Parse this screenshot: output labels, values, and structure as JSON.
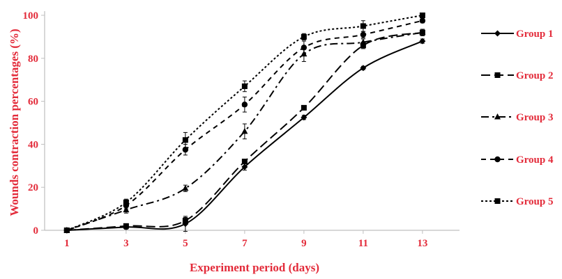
{
  "chart_data": {
    "type": "line",
    "title": "",
    "xlabel": "Experiment period (days)",
    "ylabel": "Wounds contraction percentages  (%)",
    "x": [
      1,
      3,
      5,
      7,
      9,
      11,
      13
    ],
    "xlim": [
      0.25,
      14.25
    ],
    "ylim": [
      0,
      100
    ],
    "yticks": [
      0,
      20,
      40,
      60,
      80,
      100
    ],
    "grid": false,
    "legend_position": "right",
    "colors": {
      "text": "#E32B3A",
      "line": "#000000",
      "axis": "#BFBFBF"
    },
    "series": [
      {
        "name": "Group 1",
        "marker": "diamond",
        "dash": "solid",
        "values": [
          0,
          1.5,
          3,
          29.5,
          52.5,
          75.5,
          88
        ],
        "errors": [
          0.5,
          1,
          3.5,
          1.5,
          1,
          0.8,
          1
        ]
      },
      {
        "name": "Group 2",
        "marker": "square",
        "dash": "longdash",
        "values": [
          0,
          2,
          4.5,
          32,
          57,
          86,
          92
        ],
        "errors": [
          0.5,
          1,
          1.5,
          1,
          1,
          1.5,
          1.5
        ]
      },
      {
        "name": "Group 3",
        "marker": "triangle",
        "dash": "dashdot",
        "values": [
          0,
          9.5,
          19.5,
          46,
          82,
          87.5,
          92
        ],
        "errors": [
          0.5,
          1.5,
          1.5,
          3.5,
          3.5,
          1.5,
          1.5
        ]
      },
      {
        "name": "Group 4",
        "marker": "circle",
        "dash": "dash",
        "values": [
          0,
          11.5,
          37.5,
          58.5,
          85,
          91,
          97.5
        ],
        "errors": [
          0.5,
          1.5,
          2.5,
          3.5,
          3,
          1.5,
          1
        ]
      },
      {
        "name": "Group 5",
        "marker": "square",
        "dash": "dot",
        "values": [
          0,
          13,
          42,
          67,
          90,
          95,
          100
        ],
        "errors": [
          0.5,
          1.5,
          3.5,
          2.5,
          1.5,
          2.5,
          1
        ]
      }
    ]
  }
}
